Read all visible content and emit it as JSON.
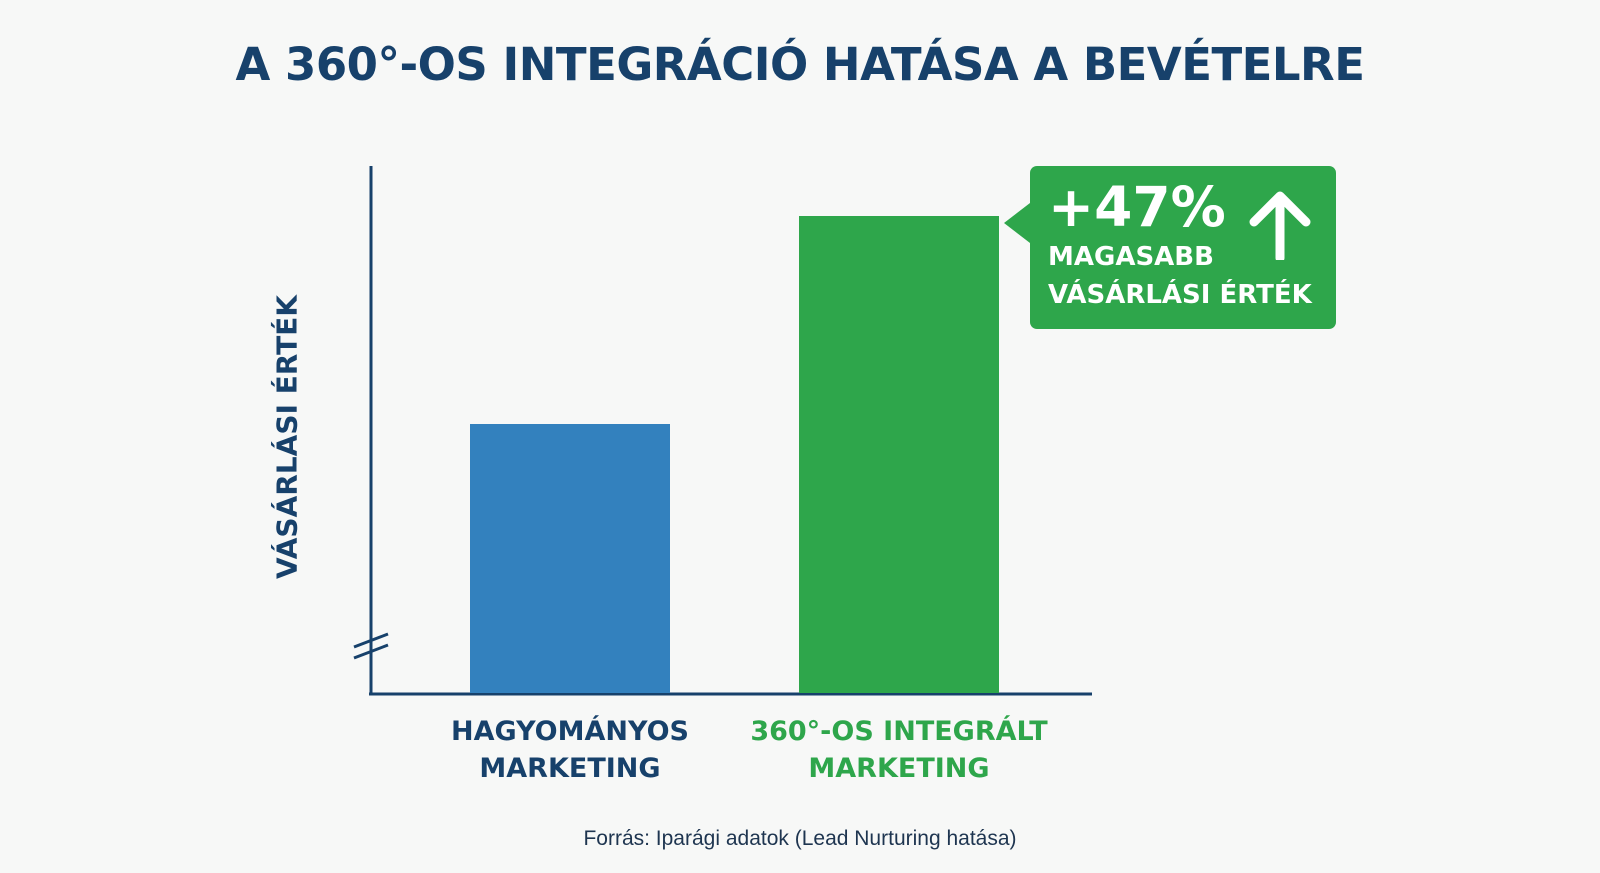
{
  "colors": {
    "title": "#17416b",
    "axis": "#17416b",
    "traditional": "#3381be",
    "integrated": "#2ea64b",
    "background": "#f7f8f7"
  },
  "chart_data": {
    "type": "bar",
    "title": "A 360°-OS INTEGRÁCIÓ HATÁSA A BEVÉTELRE",
    "ylabel": "VÁSÁRLÁSI ÉRTÉK",
    "xlabel": "",
    "categories": [
      "HAGYOMÁNYOS\nMARKETING",
      "360°-OS INTEGRÁLT\nMARKETING"
    ],
    "values": [
      100,
      147
    ],
    "ylim": [
      0,
      157
    ],
    "axis_break": true,
    "grid": false,
    "annotation": {
      "value": "+47%",
      "text": "MAGASABB\nVÁSÁRLÁSI ÉRTÉK",
      "icon": "arrow-up-icon"
    },
    "source": "Forrás: Iparági adatok (Lead Nurturing hatása)"
  }
}
